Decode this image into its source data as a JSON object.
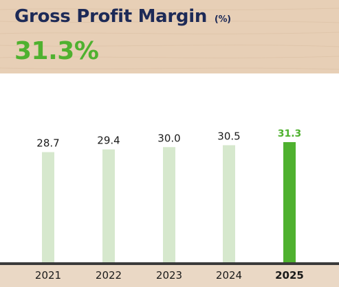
{
  "header": {
    "title": "Gross Profit Margin",
    "unit": "(%)",
    "highlight_value": "31.3%"
  },
  "colors": {
    "title": "#1d2a57",
    "highlight": "#4fb12f",
    "bar_normal": "#d6e8cd",
    "bar_highlight": "#4fb12f",
    "axis": "#3a3a3a"
  },
  "chart_data": {
    "type": "bar",
    "categories": [
      "2021",
      "2022",
      "2023",
      "2024",
      "2025"
    ],
    "values": [
      28.7,
      29.4,
      30.0,
      30.5,
      31.3
    ],
    "value_labels": [
      "28.7",
      "29.4",
      "30.0",
      "30.5",
      "31.3"
    ],
    "highlight_index": 4,
    "title": "Gross Profit Margin",
    "ylabel": "(%)",
    "grid": false
  }
}
